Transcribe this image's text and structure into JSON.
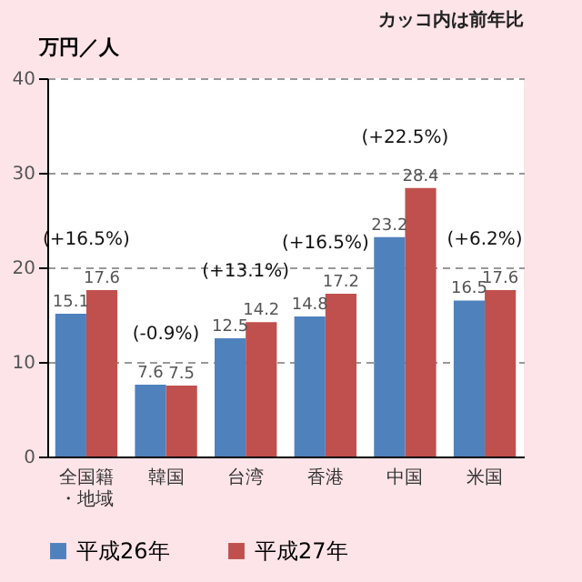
{
  "chart_data": {
    "type": "bar",
    "ylabel": "万円／人",
    "categories": [
      "全国籍・地域",
      "韓国",
      "台湾",
      "香港",
      "中国",
      "米国"
    ],
    "series": [
      {
        "name": "平成26年",
        "color": "#4f81bd",
        "values": [
          15.1,
          7.6,
          12.5,
          14.8,
          23.2,
          16.5
        ]
      },
      {
        "name": "平成27年",
        "color": "#c0504d",
        "values": [
          17.6,
          7.5,
          14.2,
          17.2,
          28.4,
          17.6
        ]
      }
    ],
    "ylim": [
      0,
      40
    ],
    "yticks": [
      0,
      10,
      20,
      30,
      40
    ],
    "grid": "y",
    "legend": "bottom",
    "data_labels": true,
    "annotations": [
      "カッコ内は前年比",
      "(+16.5%)",
      "(-0.9%)",
      "(+13.1%)",
      "(+16.5%)",
      "(+22.5%)",
      "(+6.2%)"
    ]
  }
}
